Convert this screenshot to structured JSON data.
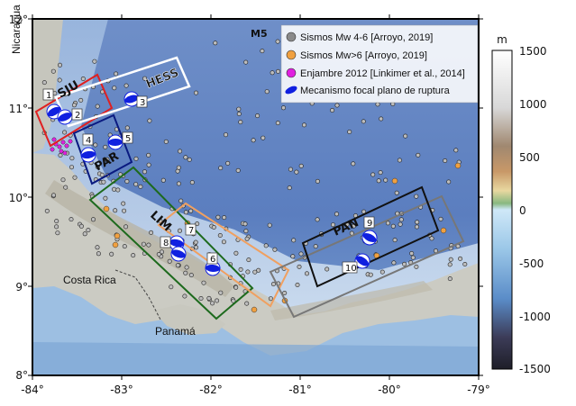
{
  "axes": {
    "x_ticks": [
      "-84°",
      "-83°",
      "-82°",
      "-81°",
      "-80°",
      "-79°"
    ],
    "y_ticks": [
      "12°",
      "11°",
      "10°",
      "9°",
      "8°"
    ]
  },
  "places": {
    "nicaragua": "Nicaragua",
    "costa_rica": "Costa Rica",
    "panama": "Panamá"
  },
  "zones": {
    "sju": "SJU",
    "hess": "HESS",
    "par": "PAR",
    "lim": "LIM",
    "pan": "PAN",
    "m5": "M5"
  },
  "mechanism_numbers": [
    "1",
    "2",
    "3",
    "4",
    "5",
    "6",
    "7",
    "8",
    "9",
    "10"
  ],
  "legend": {
    "items": [
      {
        "label": "Sismos Mw 4-6 [Arroyo, 2019]",
        "color": "#8a8a8a",
        "icon": "circle"
      },
      {
        "label": "Sismos Mw>6 [Arroyo, 2019]",
        "color": "#f0a040",
        "icon": "circle"
      },
      {
        "label": "Enjambre 2012 [Linkimer et al., 2014]",
        "color": "#e020e0",
        "icon": "circle"
      },
      {
        "label": "Mecanismo focal plano de ruptura",
        "color": "#1020e0",
        "icon": "ellipse"
      }
    ]
  },
  "colorbar": {
    "unit": "m",
    "ticks": [
      "1500",
      "1000",
      "500",
      "0",
      "-500",
      "-1000",
      "-1500"
    ]
  },
  "colors": {
    "ocean_deep": "#5a7dbf",
    "ocean_shallow": "#c5daf0",
    "land": "#c9c9c1",
    "sju_box": "#e02020",
    "hess_box": "#ffffff",
    "par_box": "#0a1a80",
    "lim_box": "#1d6a1d",
    "pan_box": "#111111",
    "orange_box": "#f0a060",
    "gray_box": "#777777"
  }
}
